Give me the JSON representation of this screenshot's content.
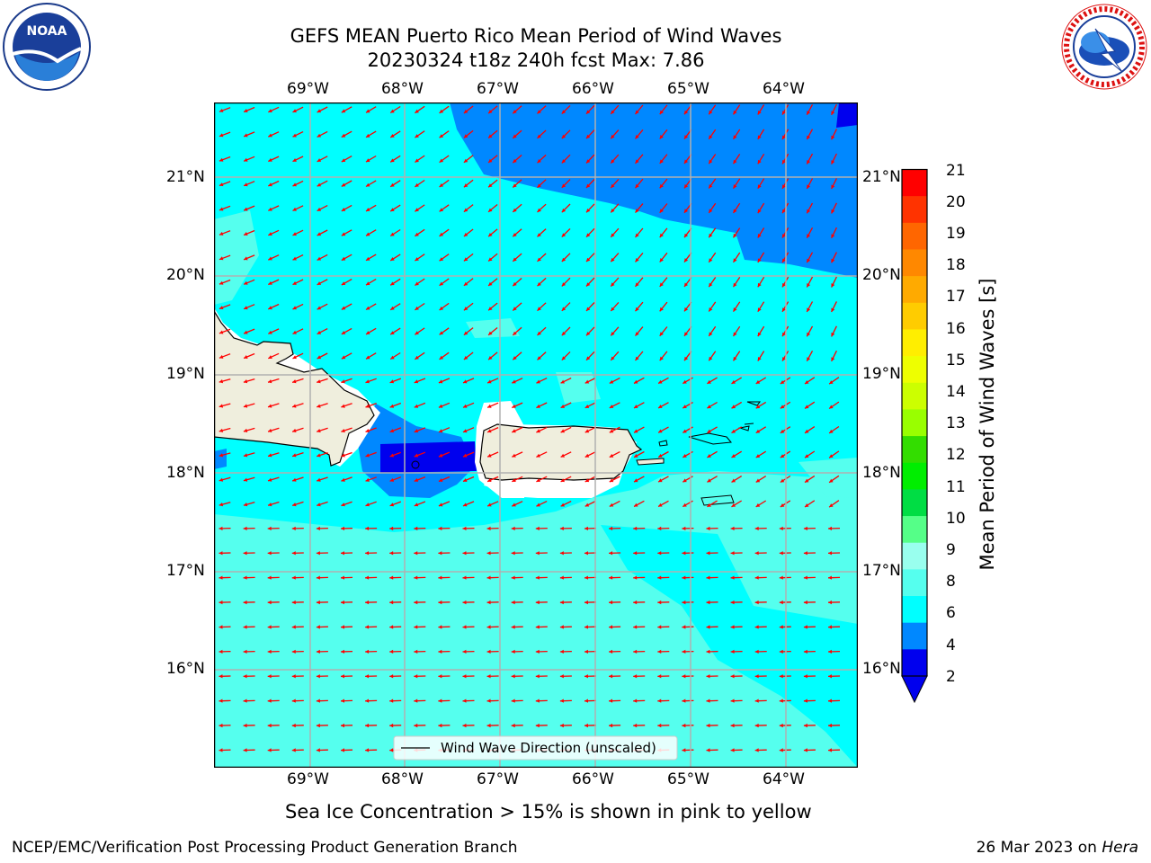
{
  "title": {
    "line1": "GEFS MEAN Puerto Rico Mean Period of Wind Waves",
    "line2": "20230324 t18z 240h fcst   Max: 7.86"
  },
  "logos": {
    "left": {
      "text": "NOAA",
      "icon": "noaa-logo-icon"
    },
    "right": {
      "text": "NATIONAL WEATHER SERVICE",
      "icon": "nws-logo-icon"
    }
  },
  "map": {
    "lon_labels": [
      "69°W",
      "68°W",
      "67°W",
      "66°W",
      "65°W",
      "64°W"
    ],
    "lat_labels": [
      "21°N",
      "20°N",
      "19°N",
      "18°N",
      "17°N",
      "16°N"
    ],
    "legend": "Wind Wave Direction (unscaled)",
    "arrow_color": "#ff0000"
  },
  "colorbar": {
    "label": "Mean Period of Wind Waves [s]",
    "ticks": [
      "21",
      "20",
      "19",
      "18",
      "17",
      "16",
      "15",
      "14",
      "13",
      "12",
      "11",
      "10",
      "9",
      "8",
      "6",
      "4",
      "2"
    ],
    "colors": [
      "#ff0000",
      "#ff3300",
      "#ff6600",
      "#ff8800",
      "#ffaa00",
      "#ffcc00",
      "#ffee00",
      "#eeff00",
      "#ccff00",
      "#99ff00",
      "#33dd00",
      "#00ee00",
      "#00dd44",
      "#55ff88",
      "#99ffee",
      "#55ffee",
      "#00ffff",
      "#0088ff",
      "#0000ee"
    ]
  },
  "footer": {
    "sea_ice": "Sea Ice Concentration > 15% is shown in pink to yellow",
    "left": "NCEP/EMC/Verification Post Processing Product Generation Branch",
    "date": "26 Mar 2023 on",
    "host": "Hera"
  }
}
